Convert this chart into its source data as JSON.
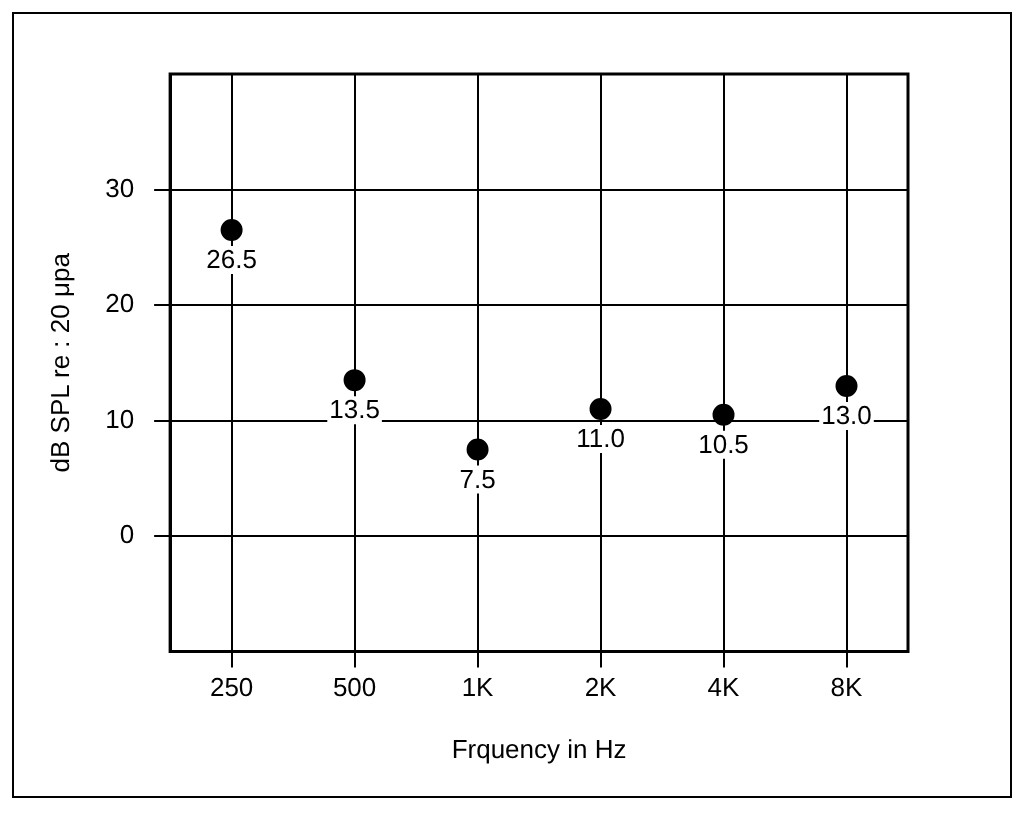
{
  "chart_data": {
    "type": "scatter",
    "xlabel": "Frquency in Hz",
    "ylabel": "dB SPL re : 20 μpa",
    "categories": [
      "250",
      "500",
      "1K",
      "2K",
      "4K",
      "8K"
    ],
    "values": [
      26.5,
      13.5,
      7.5,
      11.0,
      10.5,
      13.0
    ],
    "value_labels": [
      "26.5",
      "13.5",
      "7.5",
      "11.0",
      "10.5",
      "13.0"
    ],
    "color": "#000000",
    "marker": "circle",
    "ylim": [
      -10,
      40
    ],
    "yticks": [
      0,
      10,
      20,
      30
    ],
    "grid": true,
    "legend": false
  }
}
